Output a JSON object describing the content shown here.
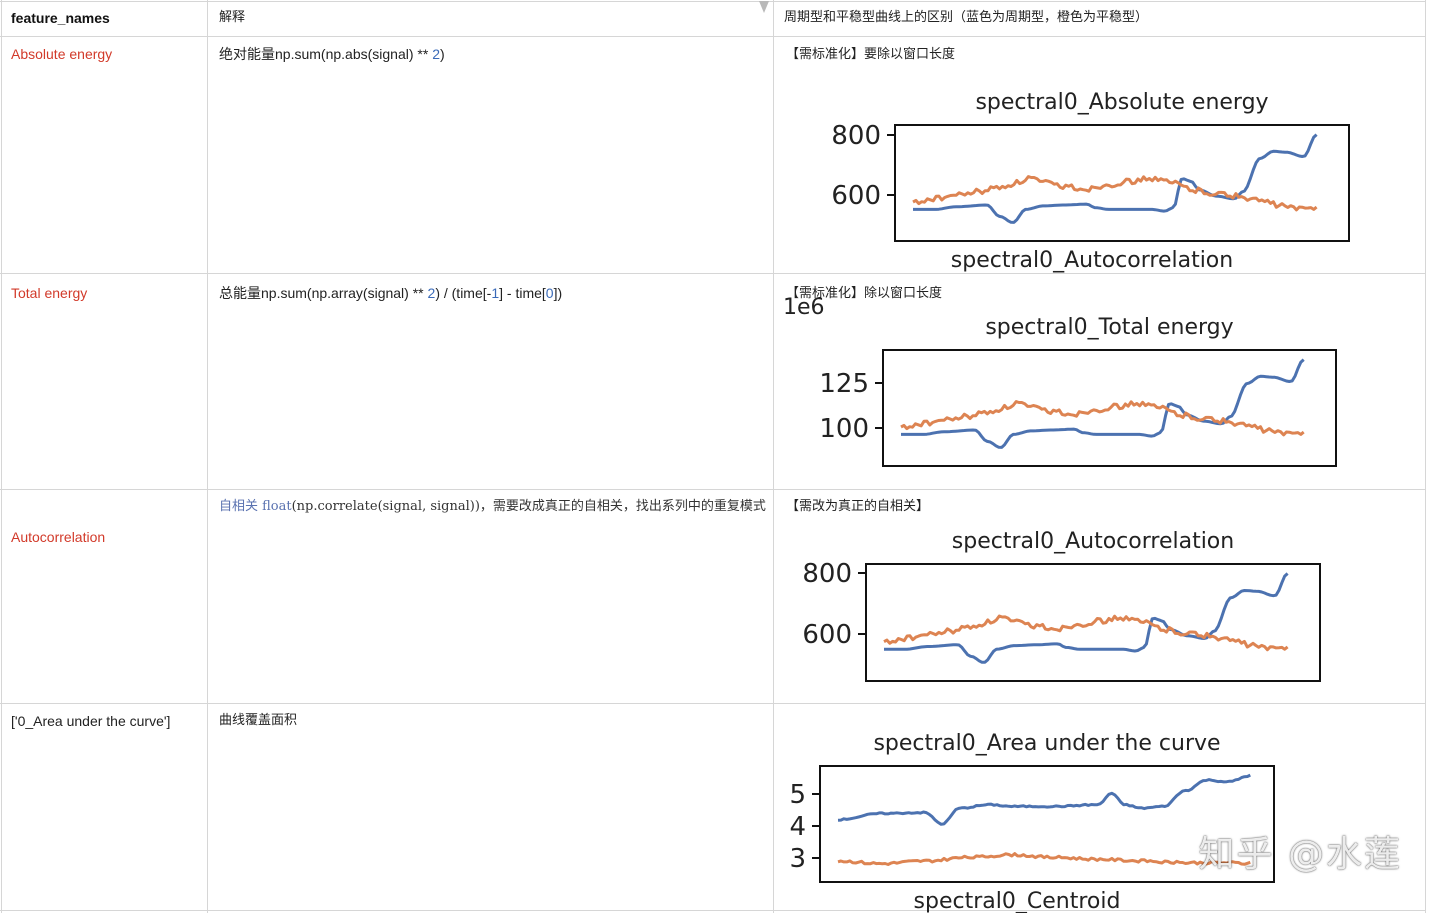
{
  "table": {
    "headers": {
      "feature": "feature_names",
      "explain": "解释",
      "diff": "周期型和平稳型曲线上的区别（蓝色为周期型，橙色为平稳型）"
    },
    "rows": [
      {
        "feature": "Absolute energy",
        "explain_pre": "绝对能量np.sum(np.abs(signal) ** ",
        "explain_num": "2",
        "explain_post": ")",
        "note": "【需标准化】要除以窗口长度",
        "chart": {
          "title": "spectral0_Absolute energy",
          "yticks": [
            "800",
            "600"
          ],
          "below_title": "spectral0_Autocorrelation"
        }
      },
      {
        "feature": "Total energy",
        "explain_pre": "总能量np.sum(np.array(signal) ** ",
        "explain_num": "2",
        "explain_mid": ") / (time[-",
        "explain_num2": "1",
        "explain_mid2": "] - time[",
        "explain_num3": "0",
        "explain_post": "])",
        "note": "【需标准化】除以窗口长度",
        "chart": {
          "title": "spectral0_Total energy",
          "yticks": [
            "125",
            "100"
          ],
          "above_text": "1e6"
        }
      },
      {
        "feature": "Autocorrelation",
        "explain_blue": "自相关 float",
        "explain_rest": "(np.correlate(signal, signal))，需要改成真正的自相关，找出系列中的重复模式",
        "note": "【需改为真正的自相关】",
        "chart": {
          "title": "spectral0_Autocorrelation",
          "yticks": [
            "800",
            "600"
          ]
        }
      },
      {
        "feature": "['0_Area under the curve']",
        "explain": "曲线覆盖面积",
        "note": "",
        "chart": {
          "title": "spectral0_Area under the curve",
          "yticks": [
            "5",
            "4",
            "3"
          ],
          "below_title": "spectral0_Centroid"
        }
      }
    ]
  },
  "colors": {
    "blue": "#4c72b0",
    "orange": "#dd8452",
    "red": "#d23a2a"
  },
  "watermark": "知乎 @水莲"
}
